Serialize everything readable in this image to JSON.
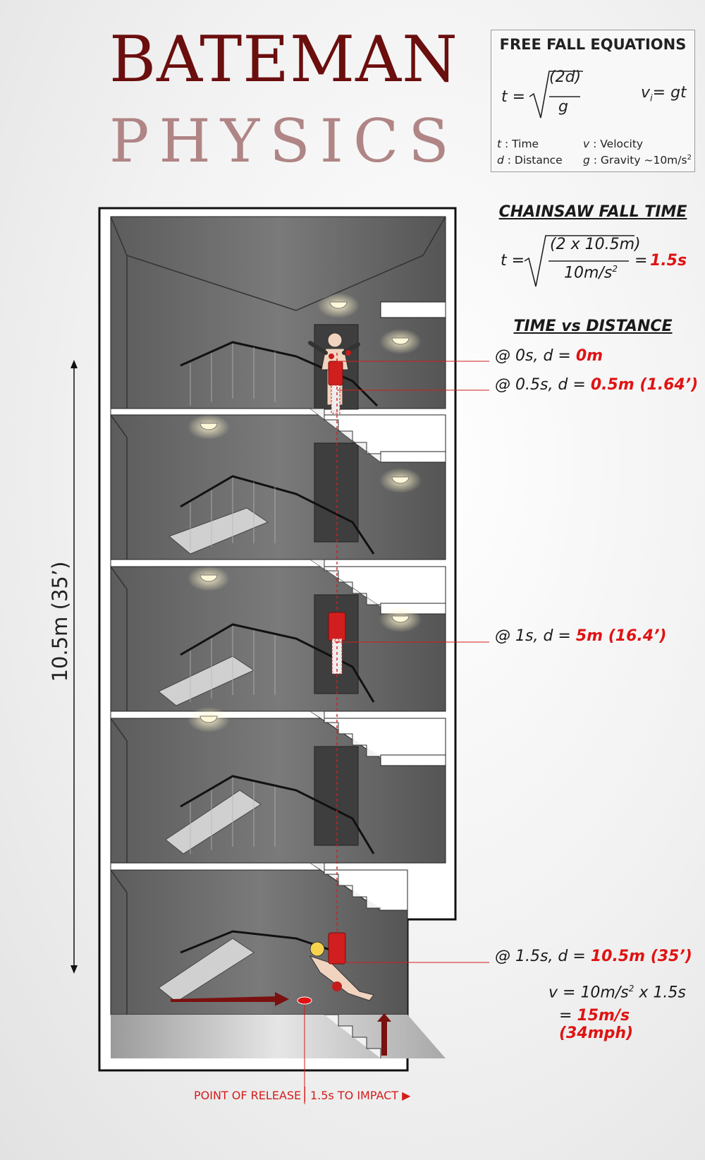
{
  "title": {
    "line1": "BATEMAN",
    "line2": "PHYSICS"
  },
  "equations_box": {
    "title": "FREE FALL EQUATIONS",
    "time_lhs": "t =",
    "time_numerator": "(2d)",
    "time_denominator": "g",
    "velocity_v": "v",
    "velocity_sub": "i",
    "velocity_rhs": "= gt",
    "legend": {
      "t_sym": "t",
      "t_desc": ": Time",
      "d_sym": "d",
      "d_desc": ": Distance",
      "v_sym": "v",
      "v_desc": ": Velocity",
      "g_sym": "g",
      "g_desc": ": Gravity ~10m/s",
      "g_sup": "2"
    }
  },
  "chainsaw_fall_time": {
    "title": "CHAINSAW FALL TIME",
    "lhs": "t =",
    "numerator": "(2 x 10.5m)",
    "denominator": "10m/s",
    "denominator_sup": "2",
    "equals": "=",
    "result": "1.5s"
  },
  "time_vs_distance": {
    "title": "TIME vs DISTANCE",
    "points": [
      {
        "prefix": "@ 0s, d =",
        "value": "0m"
      },
      {
        "prefix": "@ 0.5s, d =",
        "value": "0.5m (1.64’)"
      },
      {
        "prefix": "@ 1s, d =",
        "value": "5m (16.4’)"
      },
      {
        "prefix": "@ 1.5s, d =",
        "value": "10.5m (35’)"
      }
    ]
  },
  "impact_velocity": {
    "line1": "v = 10m/s",
    "line1_sup": "2",
    "line1_rest": " x 1.5s",
    "line2_eq": "=",
    "line2_value": "15m/s (34mph)"
  },
  "dimension": {
    "label": "10.5m  (35’)"
  },
  "bottom": {
    "release": "POINT OF RELEASE",
    "impact": "1.5s TO IMPACT ▶"
  },
  "colors": {
    "title_dark": "#6b0e0e",
    "title_light": "#b08585",
    "accent_red": "#e01313",
    "stair_dark": "#8b1d1d"
  }
}
